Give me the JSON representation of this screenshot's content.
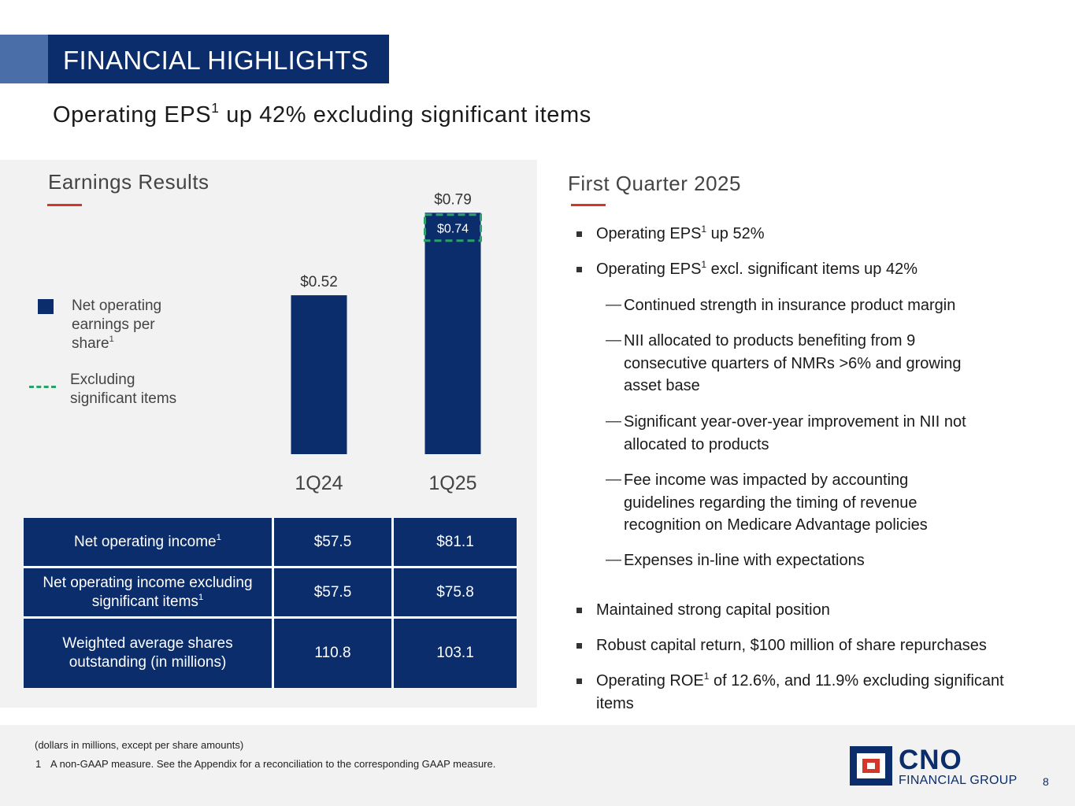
{
  "header": {
    "title": "FINANCIAL HIGHLIGHTS"
  },
  "subtitle": {
    "pre": "Operating EPS",
    "sup": "1",
    "post": " up 42% excluding significant items"
  },
  "left": {
    "heading": "Earnings Results",
    "legend": {
      "net_eps_label": "Net operating earnings per share",
      "net_eps_sup": "1",
      "excl_label": "Excluding significant items"
    }
  },
  "chart_data": {
    "type": "bar",
    "categories": [
      "1Q24",
      "1Q25"
    ],
    "series": [
      {
        "name": "Net operating earnings per share",
        "values": [
          0.52,
          0.79
        ],
        "labels": [
          "$0.52",
          "$0.79"
        ]
      },
      {
        "name": "Excluding significant items",
        "values": [
          null,
          0.74
        ],
        "labels": [
          "",
          "$0.74"
        ]
      }
    ],
    "ylim": [
      0,
      0.85
    ],
    "colors": {
      "bar": "#0b2d6b",
      "excluding": "#2aa36a"
    }
  },
  "table": {
    "rows": [
      {
        "label": "Net operating income",
        "sup": "1",
        "v1": "$57.5",
        "v2": "$81.1"
      },
      {
        "label": "Net operating income excluding significant items",
        "sup": "1",
        "v1": "$57.5",
        "v2": "$75.8"
      },
      {
        "label": "Weighted average shares outstanding (in millions)",
        "sup": "",
        "v1": "110.8",
        "v2": "103.1"
      }
    ]
  },
  "right": {
    "heading": "First Quarter 2025",
    "b1": {
      "pre": "Operating EPS",
      "sup": "1",
      "post": " up 52%"
    },
    "b2": {
      "pre": "Operating EPS",
      "sup": "1",
      "post": " excl. significant items up 42%"
    },
    "sub1": "Continued strength in insurance product margin",
    "sub2": "NII allocated to products benefiting from 9 consecutive quarters of NMRs >6% and growing asset base",
    "sub3": "Significant year-over-year improvement in NII not allocated to products",
    "sub4": "Fee income was impacted by accounting guidelines regarding the timing of revenue recognition on Medicare Advantage policies",
    "sub5": "Expenses in-line with expectations",
    "b3": "Maintained strong capital position",
    "b4": "Robust capital return, $100 million of share repurchases",
    "b5": {
      "pre": "Operating ROE",
      "sup": "1",
      "post": " of 12.6%, and 11.9% excluding significant items"
    },
    "dash": "—"
  },
  "footer": {
    "note": "(dollars in millions, except per share amounts)",
    "fn_num": "1",
    "fn_text": "A non-GAAP measure. See the Appendix for a reconciliation to the corresponding GAAP measure.",
    "logo_name": "CNO",
    "logo_sub": "FINANCIAL GROUP",
    "page": "8"
  }
}
